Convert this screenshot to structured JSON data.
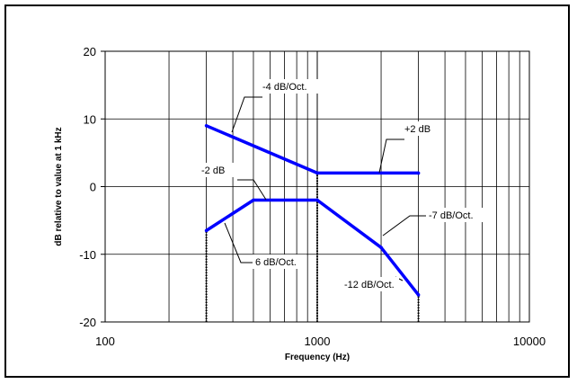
{
  "chart_data": {
    "type": "line",
    "title": "",
    "xlabel": "Frequency (Hz)",
    "ylabel": "dB relative to value at 1 kHz",
    "x_scale": "log",
    "xlim": [
      100,
      10000
    ],
    "ylim": [
      -20,
      20
    ],
    "x_ticks": [
      100,
      1000,
      10000
    ],
    "x_tick_labels": [
      "100",
      "1000",
      "10000"
    ],
    "y_ticks": [
      -20,
      -10,
      0,
      10,
      20
    ],
    "y_tick_labels": [
      "-20",
      "-10",
      "0",
      "10",
      "20"
    ],
    "grid": true,
    "legend": "none",
    "series": [
      {
        "color": "#0000ff",
        "x": [
          300,
          1000,
          3000
        ],
        "y": [
          9,
          2,
          2
        ]
      },
      {
        "color": "#0000ff",
        "x": [
          300,
          500,
          1000,
          2000,
          3000
        ],
        "y": [
          -6.5,
          -2,
          -2,
          -9,
          -16
        ]
      }
    ],
    "annotations": [
      {
        "text": "-4 dB/Oct.",
        "x": 400,
        "y": 8
      },
      {
        "text": "+2 dB",
        "x": 1800,
        "y": 2
      },
      {
        "text": "-2 dB",
        "x": 700,
        "y": -2
      },
      {
        "text": "6 dB/Oct.",
        "x": 400,
        "y": -4.5
      },
      {
        "text": "-7 dB/Oct.",
        "x": 2000,
        "y": -9
      },
      {
        "text": "-12 dB/Oct.",
        "x": 2700,
        "y": -15
      }
    ],
    "vertical_markers": [
      {
        "x": 300,
        "y_from": -20,
        "y_to": -6.5
      },
      {
        "x": 1000,
        "y_from": -20,
        "y_to": 2
      },
      {
        "x": 3000,
        "y_from": -20,
        "y_to": -16
      }
    ]
  }
}
